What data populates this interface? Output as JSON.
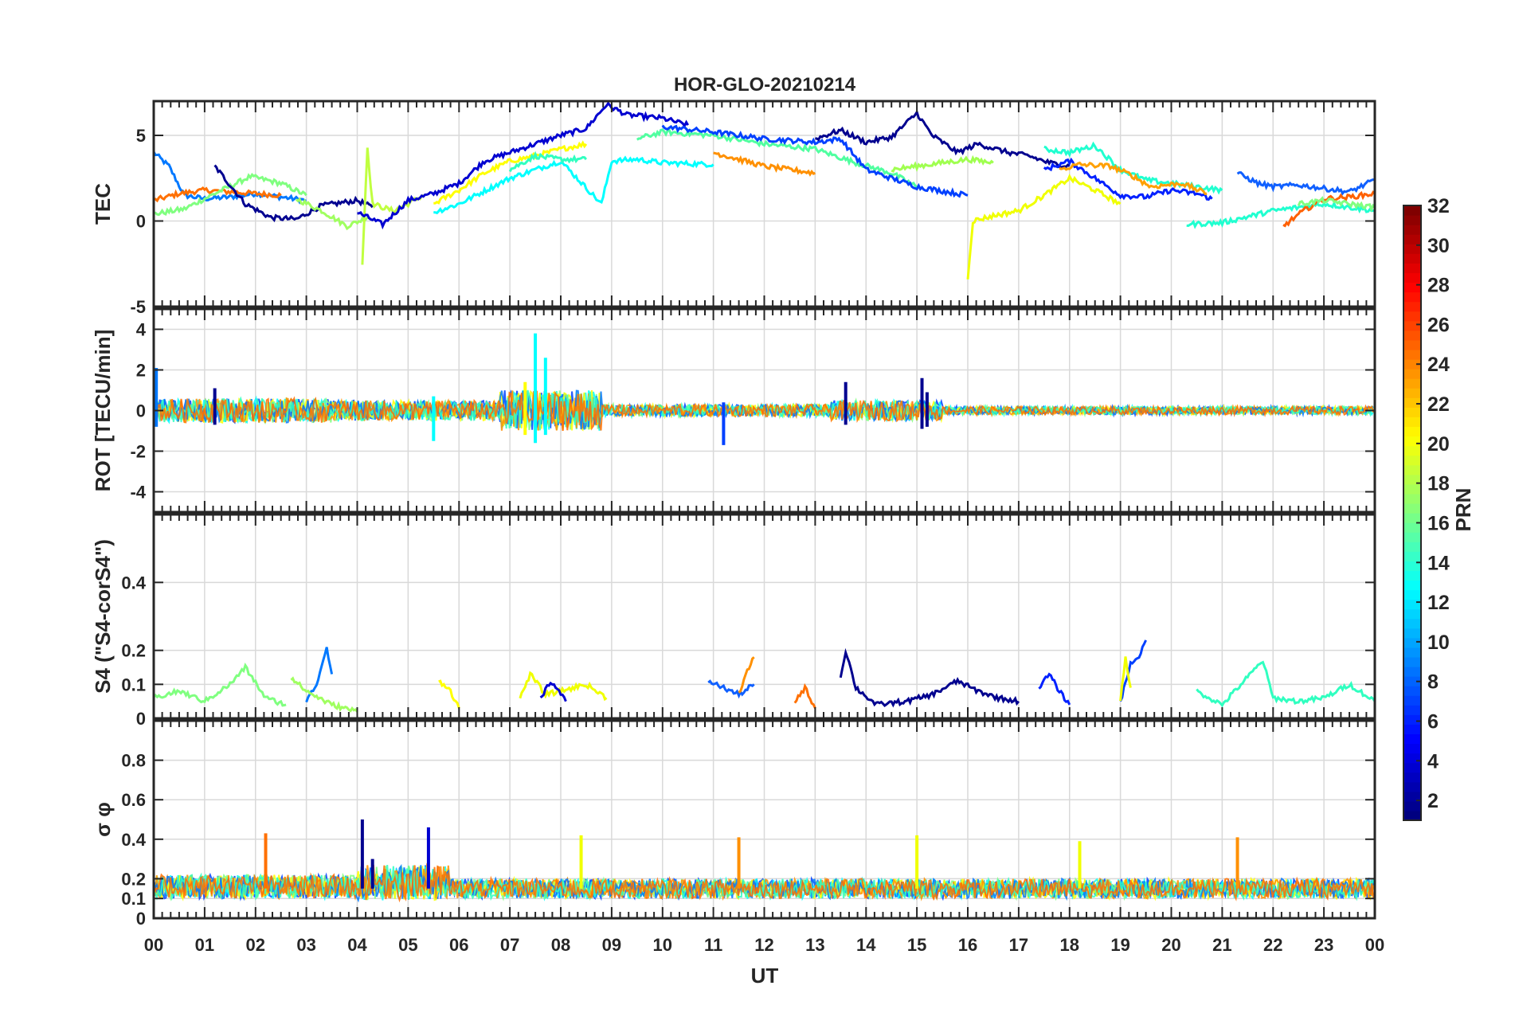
{
  "figure": {
    "title": "HOR-GLO-20210214",
    "xlabel": "UT",
    "colorbar_label": "PRN"
  },
  "colorbar": {
    "range": [
      1,
      32
    ],
    "ticks": [
      "2",
      "4",
      "6",
      "8",
      "10",
      "12",
      "14",
      "16",
      "18",
      "20",
      "22",
      "24",
      "26",
      "28",
      "30",
      "32"
    ],
    "colormap": "jet"
  },
  "x_ticks": [
    "00",
    "01",
    "02",
    "03",
    "04",
    "05",
    "06",
    "07",
    "08",
    "09",
    "10",
    "11",
    "12",
    "13",
    "14",
    "15",
    "16",
    "17",
    "18",
    "19",
    "20",
    "21",
    "22",
    "23",
    "00"
  ],
  "chart_data": [
    {
      "type": "line",
      "panel": "TEC",
      "ylabel": "TEC",
      "xlim": [
        0,
        24
      ],
      "ylim": [
        -5,
        7
      ],
      "y_ticks": [
        "5",
        "0",
        "-5"
      ],
      "grid": true,
      "series": [
        {
          "prn": 9,
          "color": "#0078ff",
          "x": [
            0.0,
            0.3,
            0.6,
            1.0,
            1.5,
            2.0,
            2.5,
            3.0
          ],
          "y": [
            4.0,
            3.2,
            1.5,
            1.3,
            1.4,
            1.6,
            1.4,
            1.2
          ]
        },
        {
          "prn": 24,
          "color": "#ff7000",
          "x": [
            0.0,
            0.5,
            1.0,
            1.5,
            2.0,
            2.5
          ],
          "y": [
            1.2,
            1.6,
            1.8,
            1.7,
            1.6,
            1.5
          ]
        },
        {
          "prn": 16,
          "color": "#80ff80",
          "x": [
            0.0,
            0.6,
            1.2,
            1.9,
            2.5,
            3.0
          ],
          "y": [
            0.4,
            0.7,
            1.6,
            2.6,
            2.2,
            1.5
          ]
        },
        {
          "prn": 2,
          "color": "#000090",
          "x": [
            1.2,
            1.8,
            2.3,
            2.8,
            3.3,
            4.0,
            4.3
          ],
          "y": [
            3.2,
            1.0,
            0.2,
            0.1,
            0.9,
            1.2,
            0.8
          ]
        },
        {
          "prn": 18,
          "color": "#a0ff60",
          "x": [
            2.8,
            3.3,
            3.8,
            4.2
          ],
          "y": [
            1.3,
            0.6,
            -0.3,
            0.2
          ]
        },
        {
          "prn": 19,
          "color": "#c0ff40",
          "x": [
            4.1,
            4.2,
            4.3,
            4.7,
            5.0,
            5.3
          ],
          "y": [
            -2.5,
            4.3,
            1.0,
            0.6,
            1.0,
            1.5
          ]
        },
        {
          "prn": 3,
          "color": "#0000d0",
          "x": [
            4.0,
            4.5,
            5.0,
            5.5,
            6.0,
            6.5,
            7.0,
            7.5,
            8.0,
            8.5,
            8.9,
            9.3,
            10.0,
            10.5
          ],
          "y": [
            0.5,
            -0.2,
            1.2,
            1.6,
            2.2,
            3.5,
            4.0,
            4.5,
            5.0,
            5.4,
            6.8,
            6.2,
            6.0,
            5.6
          ]
        },
        {
          "prn": 20,
          "color": "#ffff00",
          "x": [
            5.5,
            6.0,
            6.5,
            7.0,
            7.5,
            8.0,
            8.5
          ],
          "y": [
            1.0,
            1.8,
            2.8,
            3.5,
            3.8,
            4.2,
            4.5
          ]
        },
        {
          "prn": 12,
          "color": "#00ffff",
          "x": [
            5.5,
            6.0,
            7.0,
            8.0,
            8.8,
            9.0,
            9.5,
            10.0,
            11.0
          ],
          "y": [
            0.5,
            1.0,
            2.5,
            3.5,
            1.0,
            3.5,
            3.6,
            3.4,
            3.3
          ]
        },
        {
          "prn": 14,
          "color": "#30ffc0",
          "x": [
            7.0,
            7.5,
            8.0,
            8.5
          ],
          "y": [
            3.0,
            3.8,
            3.6,
            3.6
          ]
        },
        {
          "prn": 15,
          "color": "#50ffa0",
          "x": [
            9.5,
            10.0,
            11.0,
            12.0,
            13.0,
            13.8,
            14.5,
            15.0
          ],
          "y": [
            4.8,
            5.2,
            5.0,
            4.5,
            4.2,
            3.4,
            2.8,
            2.0
          ]
        },
        {
          "prn": 4,
          "color": "#0040ff",
          "x": [
            10.0,
            11.0,
            12.0,
            13.0,
            13.5,
            14.0,
            15.0,
            16.0
          ],
          "y": [
            5.5,
            5.2,
            4.8,
            4.6,
            4.8,
            3.0,
            2.0,
            1.5
          ]
        },
        {
          "prn": 23,
          "color": "#ff9000",
          "x": [
            11.0,
            11.5,
            12.0,
            12.5,
            13.0
          ],
          "y": [
            4.0,
            3.6,
            3.2,
            3.0,
            2.8
          ]
        },
        {
          "prn": 1,
          "color": "#00008f",
          "x": [
            13.0,
            13.5,
            14.0,
            14.5,
            15.0,
            15.3,
            15.8,
            16.2,
            16.8,
            17.2,
            17.6,
            18.0
          ],
          "y": [
            4.8,
            5.3,
            4.6,
            4.9,
            6.3,
            5.0,
            4.0,
            4.5,
            4.0,
            3.8,
            3.4,
            3.2
          ]
        },
        {
          "prn": 17,
          "color": "#a0ff50",
          "x": [
            14.5,
            15.0,
            15.5,
            16.0,
            16.5
          ],
          "y": [
            3.0,
            3.2,
            3.4,
            3.6,
            3.4
          ]
        },
        {
          "prn": 21,
          "color": "#f0ff00",
          "x": [
            16.0,
            16.1,
            16.5,
            17.0,
            17.5,
            18.0,
            18.5,
            19.0
          ],
          "y": [
            -3.3,
            0.0,
            0.3,
            0.6,
            1.5,
            2.5,
            1.8,
            1.0
          ]
        },
        {
          "prn": 13,
          "color": "#20ffd0",
          "x": [
            17.5,
            18.0,
            18.5,
            19.0,
            19.5,
            20.0,
            20.5,
            21.0
          ],
          "y": [
            4.2,
            4.0,
            4.4,
            3.0,
            2.4,
            2.2,
            2.0,
            1.8
          ]
        },
        {
          "prn": 5,
          "color": "#0020ff",
          "x": [
            17.5,
            18.0,
            18.5,
            19.0,
            19.5,
            20.0,
            20.5,
            20.8
          ],
          "y": [
            3.0,
            3.5,
            2.5,
            1.5,
            1.4,
            1.8,
            1.6,
            1.3
          ]
        },
        {
          "prn": 22,
          "color": "#ffa000",
          "x": [
            17.8,
            18.2,
            18.8,
            19.2,
            19.6,
            20.2,
            20.7
          ],
          "y": [
            3.0,
            3.3,
            3.2,
            2.7,
            2.0,
            2.2,
            1.6
          ]
        },
        {
          "prn": 13,
          "color": "#20ffd0",
          "x": [
            20.3,
            21.0,
            22.0,
            23.0,
            24.0
          ],
          "y": [
            -0.2,
            -0.1,
            0.6,
            1.0,
            0.6
          ]
        },
        {
          "prn": 7,
          "color": "#1060ff",
          "x": [
            21.3,
            21.7,
            22.0,
            22.5,
            23.0,
            23.5,
            24.0
          ],
          "y": [
            2.8,
            2.2,
            2.0,
            2.1,
            1.9,
            1.7,
            2.4
          ]
        },
        {
          "prn": 24,
          "color": "#ff6000",
          "x": [
            22.2,
            22.6,
            23.0,
            23.5,
            24.0
          ],
          "y": [
            -0.3,
            0.6,
            1.3,
            1.4,
            1.6
          ]
        },
        {
          "prn": 16,
          "color": "#80ff80",
          "x": [
            22.5,
            23.0,
            23.5,
            24.0
          ],
          "y": [
            1.0,
            1.2,
            1.0,
            0.8
          ]
        }
      ]
    },
    {
      "type": "line",
      "panel": "ROT",
      "ylabel": "ROT [TECU/min]",
      "xlim": [
        0,
        24
      ],
      "ylim": [
        -5,
        5
      ],
      "y_ticks": [
        "4",
        "2",
        "0",
        "-2",
        "-4"
      ],
      "grid": true,
      "spikes": [
        {
          "x": 0.05,
          "min": -0.8,
          "max": 2.1,
          "color": "#0078ff"
        },
        {
          "x": 1.2,
          "min": -0.7,
          "max": 1.1,
          "color": "#000090"
        },
        {
          "x": 5.5,
          "min": -1.5,
          "max": 0.7,
          "color": "#00ffff"
        },
        {
          "x": 7.5,
          "min": -1.6,
          "max": 3.8,
          "color": "#00ffff"
        },
        {
          "x": 7.7,
          "min": -1.2,
          "max": 2.6,
          "color": "#00ffff"
        },
        {
          "x": 7.3,
          "min": -1.2,
          "max": 1.4,
          "color": "#ffff00"
        },
        {
          "x": 11.2,
          "min": -1.7,
          "max": 0.4,
          "color": "#0040ff"
        },
        {
          "x": 13.6,
          "min": -0.7,
          "max": 1.4,
          "color": "#000090"
        },
        {
          "x": 15.1,
          "min": -0.9,
          "max": 1.6,
          "color": "#000090"
        },
        {
          "x": 15.2,
          "min": -0.8,
          "max": 0.9,
          "color": "#000090"
        }
      ],
      "noise_envelope": [
        {
          "x0": 0,
          "x1": 3.5,
          "amp": 0.6
        },
        {
          "x0": 3.5,
          "x1": 6.8,
          "amp": 0.5
        },
        {
          "x0": 6.8,
          "x1": 8.8,
          "amp": 1.0
        },
        {
          "x0": 8.8,
          "x1": 13.3,
          "amp": 0.3
        },
        {
          "x0": 13.3,
          "x1": 15.5,
          "amp": 0.5
        },
        {
          "x0": 15.5,
          "x1": 24,
          "amp": 0.2
        }
      ]
    },
    {
      "type": "line",
      "panel": "S4",
      "ylabel": "S4 (\"S4-corS4\")",
      "xlim": [
        0,
        24
      ],
      "ylim": [
        0,
        0.6
      ],
      "y_ticks": [
        "0.4",
        "0.2",
        "0.1",
        "0"
      ],
      "grid": true,
      "series": [
        {
          "prn": 16,
          "color": "#80ff80",
          "x": [
            0.0,
            0.5,
            1.0,
            1.5,
            1.8,
            2.2,
            2.6
          ],
          "y": [
            0.06,
            0.08,
            0.05,
            0.1,
            0.15,
            0.06,
            0.04
          ]
        },
        {
          "prn": 9,
          "color": "#0078ff",
          "x": [
            3.0,
            3.2,
            3.4,
            3.5
          ],
          "y": [
            0.05,
            0.1,
            0.21,
            0.13
          ]
        },
        {
          "prn": 18,
          "color": "#a0ff60",
          "x": [
            2.7,
            3.0,
            3.5,
            4.0
          ],
          "y": [
            0.12,
            0.08,
            0.04,
            0.02
          ]
        },
        {
          "prn": 20,
          "color": "#ffff00",
          "x": [
            5.6,
            5.8,
            6.0
          ],
          "y": [
            0.11,
            0.09,
            0.03
          ]
        },
        {
          "prn": 21,
          "color": "#f0ff00",
          "x": [
            7.2,
            7.4,
            7.7,
            8.0,
            8.5,
            8.9
          ],
          "y": [
            0.06,
            0.13,
            0.07,
            0.08,
            0.1,
            0.06
          ]
        },
        {
          "prn": 3,
          "color": "#0000d0",
          "x": [
            7.6,
            7.8,
            8.1
          ],
          "y": [
            0.06,
            0.11,
            0.05
          ]
        },
        {
          "prn": 7,
          "color": "#1060ff",
          "x": [
            10.9,
            11.2,
            11.5,
            11.8
          ],
          "y": [
            0.11,
            0.09,
            0.07,
            0.1
          ]
        },
        {
          "prn": 23,
          "color": "#ff9000",
          "x": [
            11.5,
            11.7,
            11.8
          ],
          "y": [
            0.07,
            0.15,
            0.18
          ]
        },
        {
          "prn": 24,
          "color": "#ff7000",
          "x": [
            12.6,
            12.8,
            13.0
          ],
          "y": [
            0.05,
            0.09,
            0.03
          ]
        },
        {
          "prn": 1,
          "color": "#00008f",
          "x": [
            13.5,
            13.6,
            13.8,
            14.2,
            14.8,
            15.3,
            15.8,
            16.2,
            16.6,
            17.0
          ],
          "y": [
            0.12,
            0.2,
            0.09,
            0.04,
            0.05,
            0.07,
            0.11,
            0.08,
            0.06,
            0.05
          ]
        },
        {
          "prn": 5,
          "color": "#0020ff",
          "x": [
            17.4,
            17.6,
            17.8,
            18.0
          ],
          "y": [
            0.09,
            0.13,
            0.08,
            0.04
          ]
        },
        {
          "prn": 4,
          "color": "#0040ff",
          "x": [
            19.0,
            19.2,
            19.4,
            19.5
          ],
          "y": [
            0.05,
            0.16,
            0.19,
            0.23
          ]
        },
        {
          "prn": 21,
          "color": "#f0ff00",
          "x": [
            19.0,
            19.1,
            19.2
          ],
          "y": [
            0.05,
            0.18,
            0.09
          ]
        },
        {
          "prn": 14,
          "color": "#30ffc0",
          "x": [
            20.5,
            21.0,
            21.8,
            22.0,
            22.5,
            23.0,
            23.5,
            24.0
          ],
          "y": [
            0.08,
            0.04,
            0.17,
            0.06,
            0.05,
            0.06,
            0.1,
            0.05
          ]
        }
      ]
    },
    {
      "type": "line",
      "panel": "sigma_phi",
      "ylabel": "σ φ",
      "xlim": [
        0,
        24
      ],
      "ylim": [
        0,
        1
      ],
      "y_ticks": [
        "0.8",
        "0.6",
        "0.4",
        "0.2",
        "0.1",
        "0"
      ],
      "grid": true,
      "spikes": [
        {
          "x": 2.2,
          "min": 0.15,
          "max": 0.43,
          "color": "#ff7000"
        },
        {
          "x": 4.1,
          "min": 0.15,
          "max": 0.5,
          "color": "#000090"
        },
        {
          "x": 4.3,
          "min": 0.15,
          "max": 0.3,
          "color": "#000090"
        },
        {
          "x": 5.4,
          "min": 0.15,
          "max": 0.46,
          "color": "#0000d0"
        },
        {
          "x": 8.4,
          "min": 0.15,
          "max": 0.42,
          "color": "#f0ff00"
        },
        {
          "x": 11.5,
          "min": 0.15,
          "max": 0.41,
          "color": "#ff9000"
        },
        {
          "x": 15.0,
          "min": 0.15,
          "max": 0.42,
          "color": "#f0ff00"
        },
        {
          "x": 18.2,
          "min": 0.15,
          "max": 0.39,
          "color": "#f0ff00"
        },
        {
          "x": 21.3,
          "min": 0.15,
          "max": 0.41,
          "color": "#ff9000"
        }
      ],
      "noise_envelope": [
        {
          "x0": 0,
          "x1": 4.0,
          "base": 0.16,
          "amp": 0.06
        },
        {
          "x0": 4.0,
          "x1": 5.8,
          "base": 0.18,
          "amp": 0.09
        },
        {
          "x0": 5.8,
          "x1": 24,
          "base": 0.15,
          "amp": 0.05
        }
      ]
    }
  ]
}
